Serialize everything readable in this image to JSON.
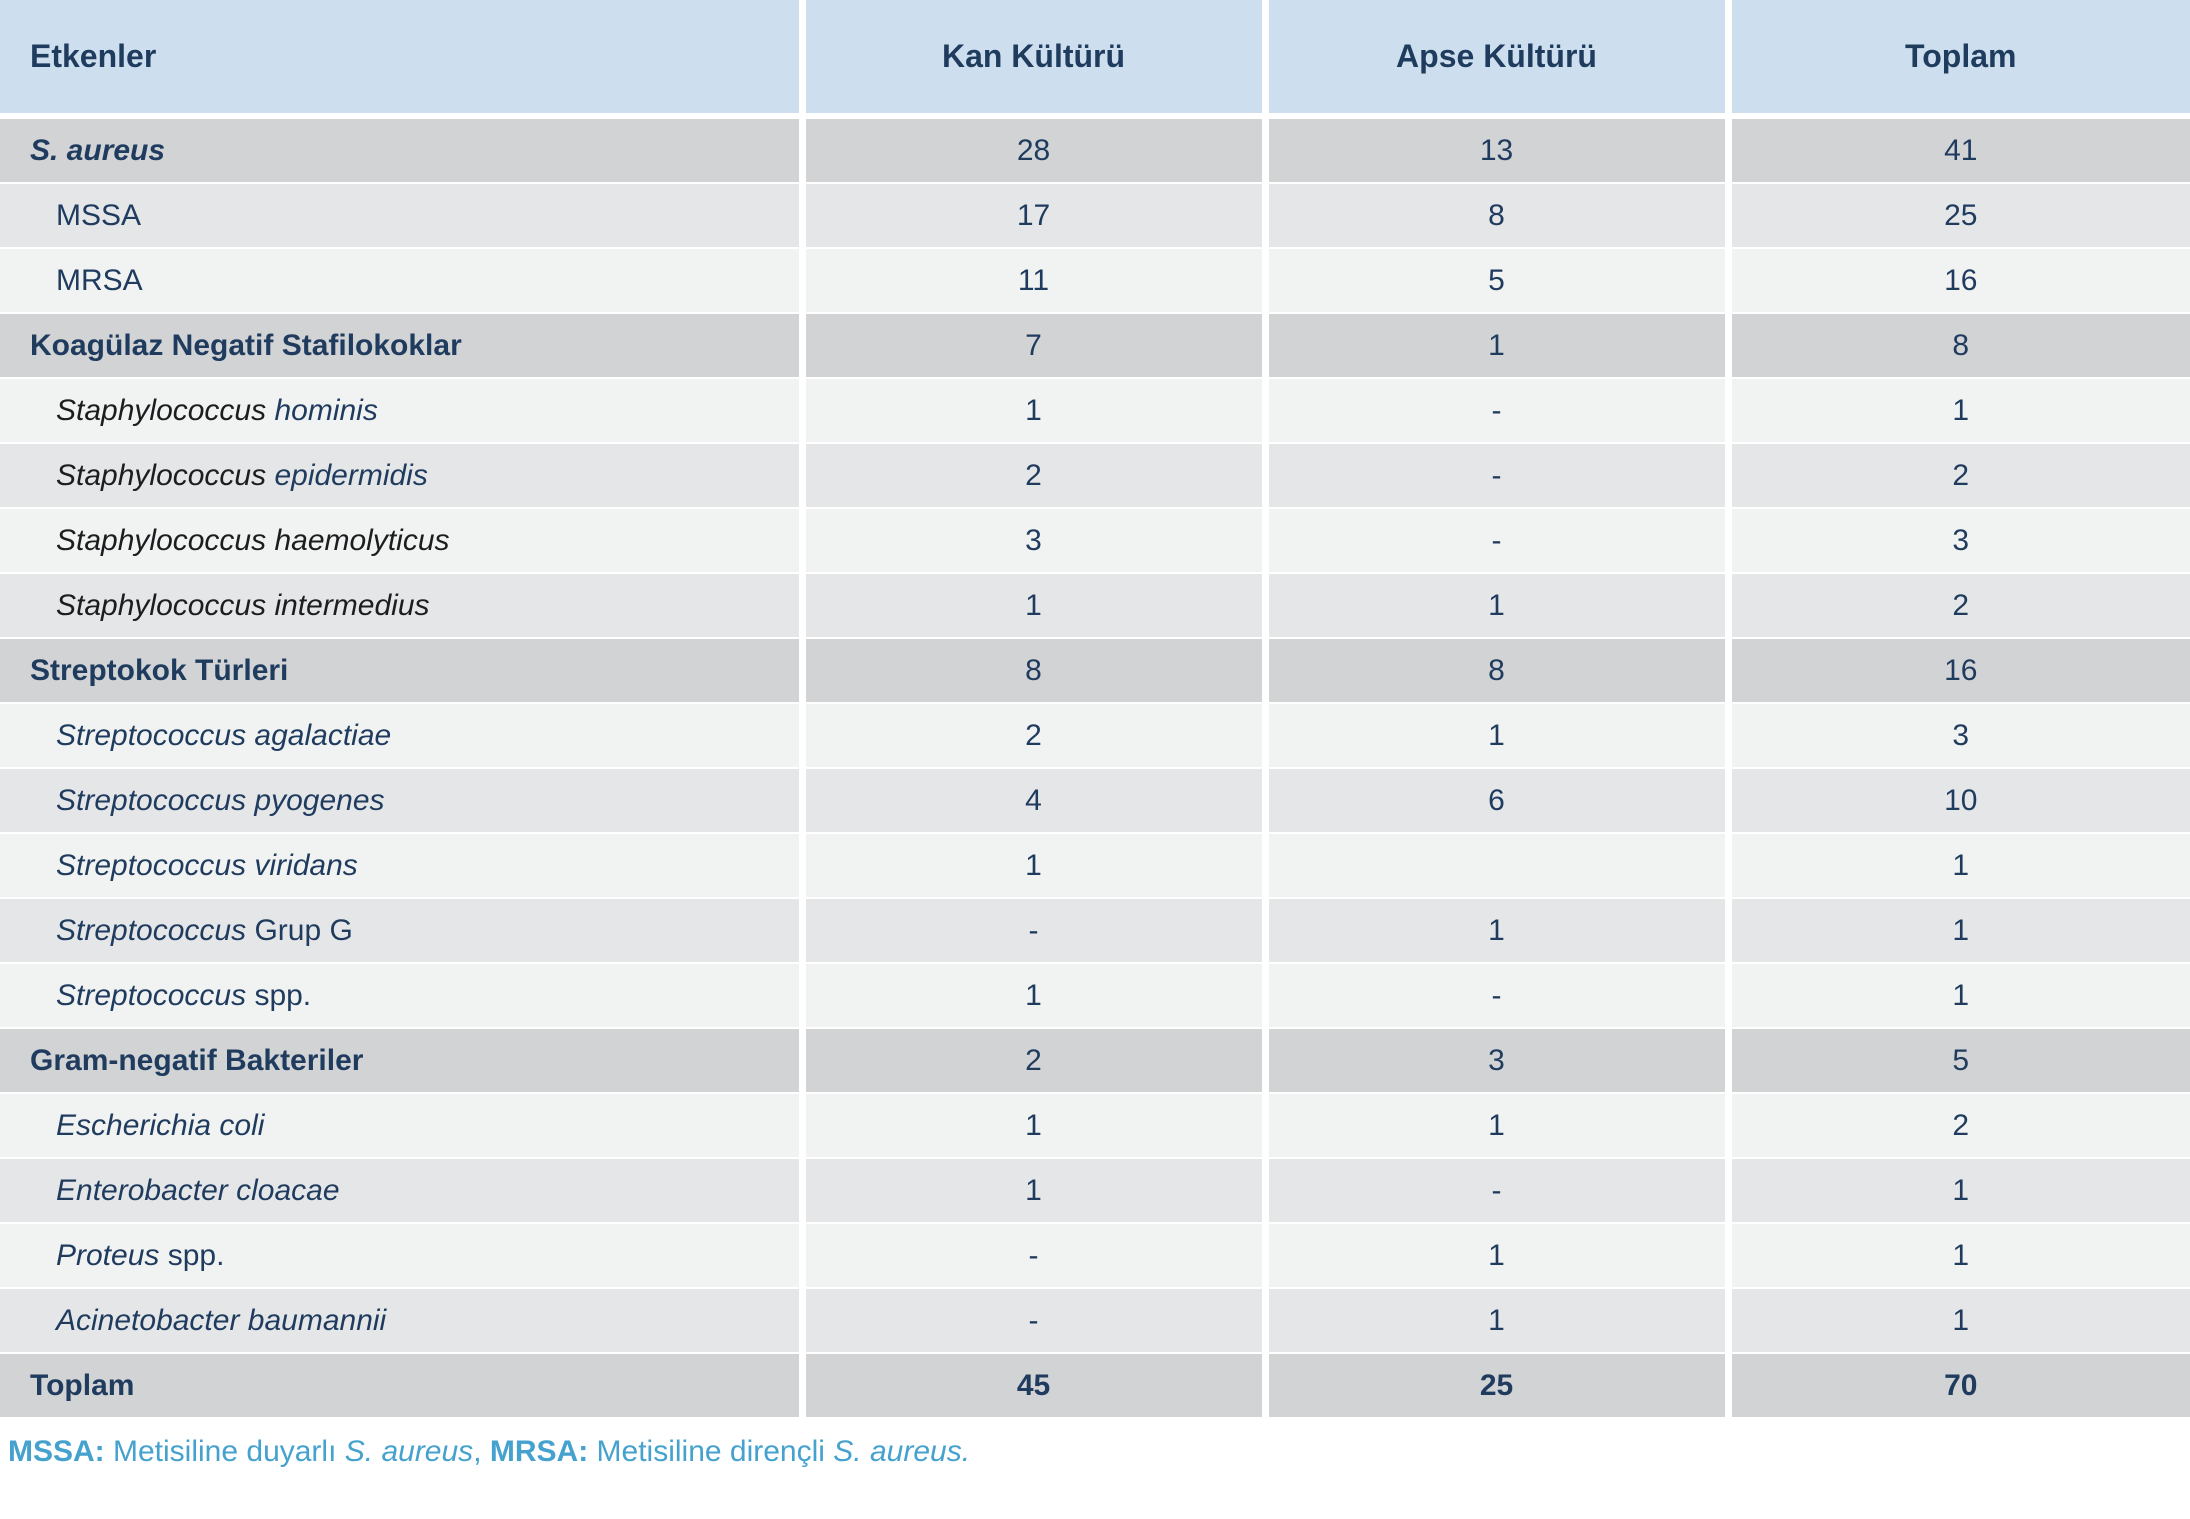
{
  "colors": {
    "header_bg": "#cddfee",
    "group_row_bg": "#d2d3d5",
    "dark_row_bg": "#e5e6e8",
    "light_row_bg": "#f1f2f2",
    "navy_text": "#1f3b5e",
    "black_text": "#1c1d1f",
    "footnote_blue": "#45a1cd"
  },
  "table": {
    "header": {
      "etkenler": "Etkenler",
      "kan": "Kan Kültürü",
      "apse": "Apse Kültürü",
      "toplam": "Toplam"
    },
    "rows": [
      {
        "id": "s-aureus",
        "tone": "group",
        "indent": false,
        "bold_values": false,
        "label": [
          {
            "text": "S. aureus",
            "italic": true,
            "bold": true,
            "color": "navy"
          }
        ],
        "values": [
          "28",
          "13",
          "41"
        ]
      },
      {
        "id": "mssa",
        "tone": "dark",
        "indent": true,
        "bold_values": false,
        "label": [
          {
            "text": "MSSA",
            "italic": false,
            "bold": false,
            "color": "navy"
          }
        ],
        "values": [
          "17",
          "8",
          "25"
        ]
      },
      {
        "id": "mrsa",
        "tone": "light",
        "indent": true,
        "bold_values": false,
        "label": [
          {
            "text": "MRSA",
            "italic": false,
            "bold": false,
            "color": "navy"
          }
        ],
        "values": [
          "11",
          "5",
          "16"
        ]
      },
      {
        "id": "koagulaz-negatif-stafilokoklar",
        "tone": "group",
        "indent": false,
        "bold_values": false,
        "label": [
          {
            "text": "Koagülaz Negatif Stafilokoklar",
            "italic": false,
            "bold": true,
            "color": "navy"
          }
        ],
        "values": [
          "7",
          "1",
          "8"
        ]
      },
      {
        "id": "staphylococcus-hominis",
        "tone": "light",
        "indent": true,
        "bold_values": false,
        "label": [
          {
            "text": "Staphylococcus ",
            "italic": true,
            "bold": false,
            "color": "black"
          },
          {
            "text": "hominis",
            "italic": true,
            "bold": false,
            "color": "navy"
          }
        ],
        "values": [
          "1",
          "-",
          "1"
        ]
      },
      {
        "id": "staphylococcus-epidermidis",
        "tone": "dark",
        "indent": true,
        "bold_values": false,
        "label": [
          {
            "text": "Staphylococcus ",
            "italic": true,
            "bold": false,
            "color": "black"
          },
          {
            "text": "epidermidis",
            "italic": true,
            "bold": false,
            "color": "navy"
          }
        ],
        "values": [
          "2",
          "-",
          "2"
        ]
      },
      {
        "id": "staphylococcus-haemolyticus",
        "tone": "light",
        "indent": true,
        "bold_values": false,
        "label": [
          {
            "text": "Staphylococcus haemolyticus",
            "italic": true,
            "bold": false,
            "color": "black"
          }
        ],
        "values": [
          "3",
          "-",
          "3"
        ]
      },
      {
        "id": "staphylococcus-intermedius",
        "tone": "dark",
        "indent": true,
        "bold_values": false,
        "label": [
          {
            "text": "Staphylococcus intermedius",
            "italic": true,
            "bold": false,
            "color": "black"
          }
        ],
        "values": [
          "1",
          "1",
          "2"
        ]
      },
      {
        "id": "streptokok-turleri",
        "tone": "group",
        "indent": false,
        "bold_values": false,
        "label": [
          {
            "text": "Streptokok Türleri",
            "italic": false,
            "bold": true,
            "color": "navy"
          }
        ],
        "values": [
          "8",
          "8",
          "16"
        ]
      },
      {
        "id": "streptococcus-agalactiae",
        "tone": "light",
        "indent": true,
        "bold_values": false,
        "label": [
          {
            "text": "Streptococcus agalactiae",
            "italic": true,
            "bold": false,
            "color": "navy"
          }
        ],
        "values": [
          "2",
          "1",
          "3"
        ]
      },
      {
        "id": "streptococcus-pyogenes",
        "tone": "dark",
        "indent": true,
        "bold_values": false,
        "label": [
          {
            "text": "Streptococcus pyogenes",
            "italic": true,
            "bold": false,
            "color": "navy"
          }
        ],
        "values": [
          "4",
          "6",
          "10"
        ]
      },
      {
        "id": "streptococcus-viridans",
        "tone": "light",
        "indent": true,
        "bold_values": false,
        "label": [
          {
            "text": "Streptococcus viridans",
            "italic": true,
            "bold": false,
            "color": "navy"
          }
        ],
        "values": [
          "1",
          "",
          "1"
        ]
      },
      {
        "id": "streptococcus-grup-g",
        "tone": "dark",
        "indent": true,
        "bold_values": false,
        "label": [
          {
            "text": "Streptococcus ",
            "italic": true,
            "bold": false,
            "color": "navy"
          },
          {
            "text": "Grup G",
            "italic": false,
            "bold": false,
            "color": "navy"
          }
        ],
        "values": [
          "-",
          "1",
          "1"
        ]
      },
      {
        "id": "streptococcus-spp",
        "tone": "light",
        "indent": true,
        "bold_values": false,
        "label": [
          {
            "text": "Streptococcus ",
            "italic": true,
            "bold": false,
            "color": "navy"
          },
          {
            "text": "spp.",
            "italic": false,
            "bold": false,
            "color": "navy"
          }
        ],
        "values": [
          "1",
          "-",
          "1"
        ]
      },
      {
        "id": "gram-negatif-bakteriler",
        "tone": "group",
        "indent": false,
        "bold_values": false,
        "label": [
          {
            "text": "Gram-negatif Bakteriler",
            "italic": false,
            "bold": true,
            "color": "navy"
          }
        ],
        "values": [
          "2",
          "3",
          "5"
        ]
      },
      {
        "id": "escherichia-coli",
        "tone": "light",
        "indent": true,
        "bold_values": false,
        "label": [
          {
            "text": "Escherichia coli",
            "italic": true,
            "bold": false,
            "color": "navy"
          }
        ],
        "values": [
          "1",
          "1",
          "2"
        ]
      },
      {
        "id": "enterobacter-cloacae",
        "tone": "dark",
        "indent": true,
        "bold_values": false,
        "label": [
          {
            "text": "Enterobacter cloacae",
            "italic": true,
            "bold": false,
            "color": "navy"
          }
        ],
        "values": [
          "1",
          "-",
          "1"
        ]
      },
      {
        "id": "proteus-spp",
        "tone": "light",
        "indent": true,
        "bold_values": false,
        "label": [
          {
            "text": "Proteus ",
            "italic": true,
            "bold": false,
            "color": "navy"
          },
          {
            "text": "spp.",
            "italic": false,
            "bold": false,
            "color": "navy"
          }
        ],
        "values": [
          "-",
          "1",
          "1"
        ]
      },
      {
        "id": "acinetobacter-baumannii",
        "tone": "dark",
        "indent": true,
        "bold_values": false,
        "label": [
          {
            "text": "Acinetobacter baumannii",
            "italic": true,
            "bold": false,
            "color": "navy"
          }
        ],
        "values": [
          "-",
          "1",
          "1"
        ]
      },
      {
        "id": "toplam",
        "tone": "group",
        "indent": false,
        "bold_values": true,
        "label": [
          {
            "text": "Toplam",
            "italic": false,
            "bold": true,
            "color": "navy"
          }
        ],
        "values": [
          "45",
          "25",
          "70"
        ]
      }
    ]
  },
  "footnote": {
    "segments": [
      {
        "text": "MSSA:",
        "italic": false,
        "bold": true
      },
      {
        "text": " Metisiline duyarlı ",
        "italic": false,
        "bold": false
      },
      {
        "text": "S. aureus",
        "italic": true,
        "bold": false
      },
      {
        "text": ", ",
        "italic": false,
        "bold": false
      },
      {
        "text": "MRSA:",
        "italic": false,
        "bold": true
      },
      {
        "text": " Metisiline dirençli ",
        "italic": false,
        "bold": false
      },
      {
        "text": "S. aureus.",
        "italic": true,
        "bold": false
      }
    ]
  }
}
